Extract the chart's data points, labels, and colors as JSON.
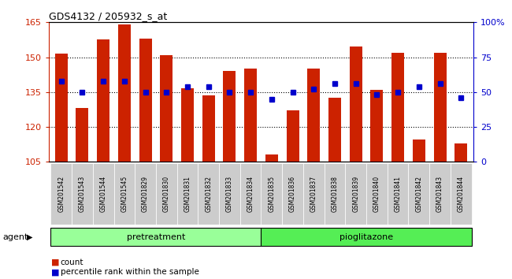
{
  "title": "GDS4132 / 205932_s_at",
  "samples": [
    "GSM201542",
    "GSM201543",
    "GSM201544",
    "GSM201545",
    "GSM201829",
    "GSM201830",
    "GSM201831",
    "GSM201832",
    "GSM201833",
    "GSM201834",
    "GSM201835",
    "GSM201836",
    "GSM201837",
    "GSM201838",
    "GSM201839",
    "GSM201840",
    "GSM201841",
    "GSM201842",
    "GSM201843",
    "GSM201844"
  ],
  "counts": [
    151.5,
    128.0,
    157.5,
    164.0,
    158.0,
    151.0,
    136.5,
    133.5,
    144.0,
    145.0,
    108.0,
    127.0,
    145.0,
    132.5,
    154.5,
    136.0,
    152.0,
    114.5,
    152.0,
    113.0
  ],
  "percentiles": [
    58,
    50,
    58,
    58,
    50,
    50,
    54,
    54,
    50,
    50,
    45,
    50,
    52,
    56,
    56,
    48,
    50,
    54,
    56,
    46
  ],
  "ylim_left": [
    105,
    165
  ],
  "ylim_right": [
    0,
    100
  ],
  "yticks_left": [
    105,
    120,
    135,
    150,
    165
  ],
  "yticks_right": [
    0,
    25,
    50,
    75,
    100
  ],
  "ytick_labels_right": [
    "0",
    "25",
    "50",
    "75",
    "100%"
  ],
  "pretreatment_count": 10,
  "pioglitazone_count": 10,
  "bar_color": "#CC2200",
  "dot_color": "#0000CC",
  "pretreatment_color": "#99FF99",
  "pioglitazone_color": "#55EE55",
  "agent_label": "agent",
  "pretreatment_label": "pretreatment",
  "pioglitazone_label": "pioglitazone",
  "legend_count_label": "count",
  "legend_percentile_label": "percentile rank within the sample",
  "tick_area_color": "#CCCCCC",
  "bar_width": 0.6
}
